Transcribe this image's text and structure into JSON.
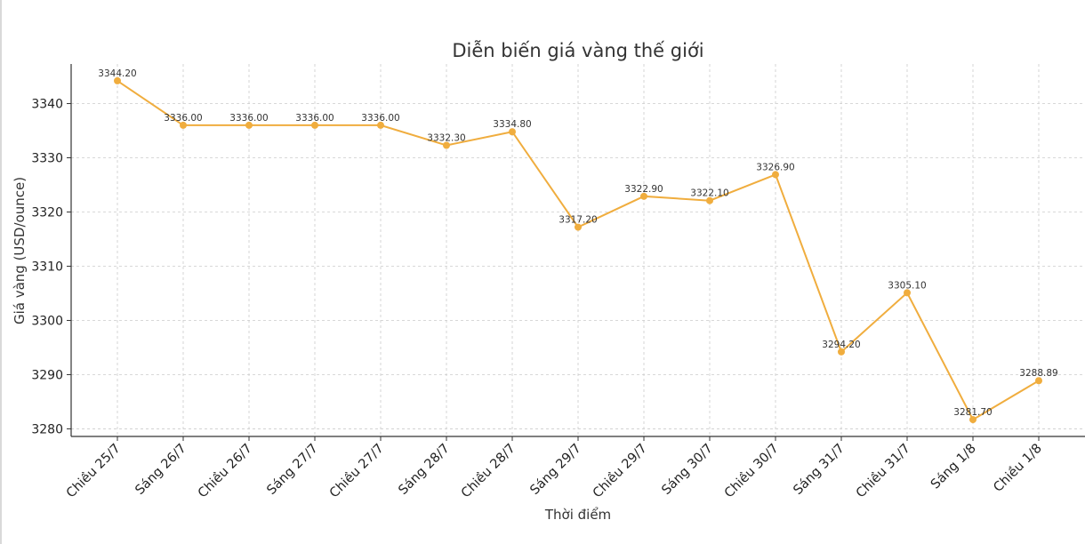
{
  "chart_data": {
    "type": "line",
    "title": "Diễn biến giá vàng thế giới",
    "xlabel": "Thời điểm",
    "ylabel": "Giá vàng (USD/ounce)",
    "categories": [
      "Chiều 25/7",
      "Sáng 26/7",
      "Chiều 26/7",
      "Sáng 27/7",
      "Chiều 27/7",
      "Sáng 28/7",
      "Chiều 28/7",
      "Sáng 29/7",
      "Chiều 29/7",
      "Sáng 30/7",
      "Chiều 30/7",
      "Sáng 31/7",
      "Chiều 31/7",
      "Sáng 1/8",
      "Chiều 1/8"
    ],
    "values": [
      3344.2,
      3336.0,
      3336.0,
      3336.0,
      3336.0,
      3332.3,
      3334.8,
      3317.2,
      3322.9,
      3322.1,
      3326.9,
      3294.2,
      3305.1,
      3281.7,
      3288.89
    ],
    "data_labels": [
      "3344.20",
      "3336.00",
      "3336.00",
      "3336.00",
      "3336.00",
      "3332.30",
      "3334.80",
      "3317.20",
      "3322.90",
      "3322.10",
      "3326.90",
      "3294.20",
      "3305.10",
      "3281.70",
      "3288.89"
    ],
    "yticks": [
      3280,
      3290,
      3300,
      3310,
      3320,
      3330,
      3340
    ],
    "ylim": [
      3278.6,
      3347.3
    ],
    "grid": true,
    "legend": "none",
    "line_color": "#f0ad3e"
  }
}
